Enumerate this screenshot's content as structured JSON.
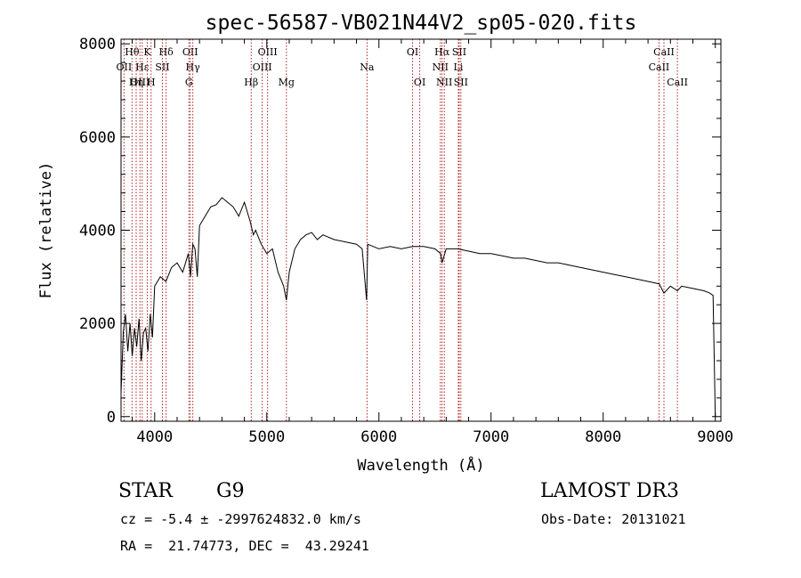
{
  "chart_data": {
    "type": "line",
    "title": "spec-56587-VB021N44V2_sp05-020.fits",
    "xlabel": "Wavelength (Å)",
    "ylabel": "Flux (relative)",
    "xlim": [
      3700,
      9050
    ],
    "ylim": [
      -100,
      8100
    ],
    "xticks": [
      4000,
      5000,
      6000,
      7000,
      8000,
      9000
    ],
    "yticks": [
      0,
      2000,
      4000,
      6000,
      8000
    ],
    "series": [
      {
        "name": "spectrum",
        "x": [
          3700,
          3720,
          3740,
          3760,
          3780,
          3800,
          3820,
          3840,
          3860,
          3880,
          3900,
          3920,
          3940,
          3960,
          3980,
          4000,
          4050,
          4100,
          4150,
          4200,
          4250,
          4300,
          4320,
          4340,
          4360,
          4380,
          4400,
          4450,
          4500,
          4550,
          4600,
          4650,
          4700,
          4750,
          4800,
          4850,
          4880,
          4900,
          4950,
          5000,
          5050,
          5100,
          5150,
          5175,
          5200,
          5250,
          5300,
          5350,
          5400,
          5450,
          5500,
          5600,
          5700,
          5800,
          5850,
          5890,
          5900,
          5950,
          6000,
          6100,
          6200,
          6300,
          6400,
          6500,
          6550,
          6563,
          6600,
          6700,
          6800,
          6900,
          7000,
          7100,
          7200,
          7300,
          7400,
          7500,
          7600,
          7700,
          7800,
          7900,
          8000,
          8100,
          8200,
          8300,
          8400,
          8500,
          8542,
          8600,
          8662,
          8700,
          8800,
          8900,
          8950,
          8980,
          9000
        ],
        "y": [
          500,
          1800,
          2200,
          1400,
          2000,
          1300,
          1900,
          1500,
          2100,
          1200,
          1800,
          1900,
          1400,
          2200,
          1700,
          2800,
          3000,
          2900,
          3200,
          3300,
          3100,
          3500,
          3000,
          3700,
          3600,
          3000,
          4100,
          4300,
          4500,
          4550,
          4700,
          4600,
          4500,
          4300,
          4600,
          4200,
          3900,
          4000,
          3700,
          3500,
          3600,
          3100,
          2800,
          2500,
          3100,
          3600,
          3800,
          3900,
          3950,
          3800,
          3900,
          3800,
          3750,
          3700,
          3600,
          2500,
          3700,
          3650,
          3600,
          3650,
          3600,
          3650,
          3650,
          3600,
          3500,
          3300,
          3600,
          3600,
          3550,
          3500,
          3500,
          3450,
          3400,
          3400,
          3350,
          3300,
          3300,
          3250,
          3200,
          3150,
          3100,
          3050,
          3000,
          2950,
          2900,
          2850,
          2650,
          2800,
          2700,
          2800,
          2750,
          2700,
          2650,
          2600,
          0
        ]
      }
    ],
    "lines": [
      {
        "label": "Hθ",
        "wl": 3798,
        "row": 1
      },
      {
        "label": "OII",
        "wl": 3727,
        "row": 2
      },
      {
        "label": "OIII",
        "wl": 3869,
        "row": 3
      },
      {
        "label": "Hε",
        "wl": 3889,
        "row": 2
      },
      {
        "label": "Hη",
        "wl": 3835,
        "row": 3
      },
      {
        "label": "K",
        "wl": 3934,
        "row": 1
      },
      {
        "label": "H",
        "wl": 3968,
        "row": 3
      },
      {
        "label": "SII",
        "wl": 4069,
        "row": 2
      },
      {
        "label": "Hδ",
        "wl": 4102,
        "row": 1
      },
      {
        "label": "OII",
        "wl": 4317,
        "row": 1
      },
      {
        "label": "Hγ",
        "wl": 4340,
        "row": 2
      },
      {
        "label": "G",
        "wl": 4305,
        "row": 3
      },
      {
        "label": "Hβ",
        "wl": 4861,
        "row": 3
      },
      {
        "label": "OIII",
        "wl": 4959,
        "row": 2
      },
      {
        "label": "OIII",
        "wl": 5007,
        "row": 1
      },
      {
        "label": "Mg",
        "wl": 5175,
        "row": 3
      },
      {
        "label": "Na",
        "wl": 5894,
        "row": 2
      },
      {
        "label": "OI",
        "wl": 6300,
        "row": 1
      },
      {
        "label": "OI",
        "wl": 6364,
        "row": 3
      },
      {
        "label": "Hα",
        "wl": 6563,
        "row": 1
      },
      {
        "label": "NII",
        "wl": 6548,
        "row": 2
      },
      {
        "label": "NII",
        "wl": 6583,
        "row": 3
      },
      {
        "label": "SII",
        "wl": 6716,
        "row": 1
      },
      {
        "label": "Li",
        "wl": 6708,
        "row": 2
      },
      {
        "label": "SII",
        "wl": 6731,
        "row": 3
      },
      {
        "label": "CaII",
        "wl": 8542,
        "row": 1
      },
      {
        "label": "CaII",
        "wl": 8498,
        "row": 2
      },
      {
        "label": "CaII",
        "wl": 8662,
        "row": 3
      }
    ]
  },
  "info": {
    "object_type": "STAR",
    "subclass": "G9",
    "survey": "LAMOST DR3",
    "redshift": "cz = -5.4 ± -2997624832.0 km/s",
    "obs_date": "Obs-Date: 20131021",
    "coords": "RA =  21.74773, DEC =  43.29241"
  }
}
